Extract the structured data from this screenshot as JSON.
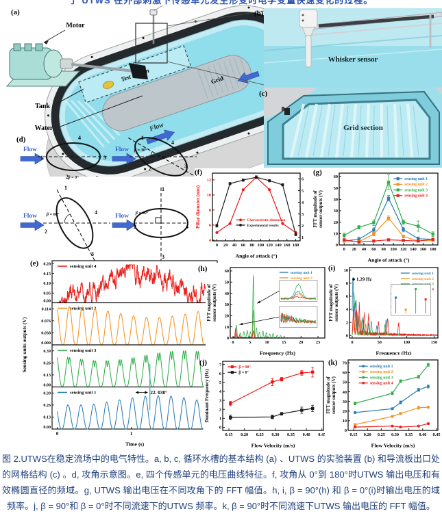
{
  "page": {
    "top_clipped_text": "了 UTWS 在外部刺激下传感单元发生形变时电学变量快速变化的过程。"
  },
  "colors": {
    "unit1": "#2a7db5",
    "unit2": "#f59122",
    "unit3": "#2fae49",
    "unit4": "#e8231f",
    "flow_arrow": "#4169cf",
    "caption": "#22407c",
    "water": "#90ddeb"
  },
  "panels": {
    "a": {
      "tag": "(a)",
      "labels": {
        "motor": "Motor",
        "tank": "Tank",
        "water": "Water",
        "test_section": "Test section",
        "flow": "Flow",
        "grid": "Grid"
      }
    },
    "b": {
      "tag": "(b)",
      "label": "Whisker sensor"
    },
    "c": {
      "tag": "(c)",
      "label": "Grid section"
    },
    "d": {
      "tag": "(d)",
      "flow": "Flow",
      "numbers": [
        "1",
        "2",
        "3",
        "4"
      ],
      "diagrams": [
        {
          "beta": "β = 0°"
        },
        {
          "beta": "β = 30°"
        },
        {
          "beta": "β = 60°"
        },
        {
          "beta": "β = 90°"
        }
      ]
    },
    "e": {
      "tag": "(e)"
    },
    "f": {
      "tag": "(f)"
    },
    "g": {
      "tag": "(g)"
    },
    "h": {
      "tag": "(h)"
    },
    "i": {
      "tag": "(i)"
    },
    "j": {
      "tag": "(j)"
    },
    "k": {
      "tag": "(k)"
    }
  },
  "chart_data": [
    {
      "id": "e",
      "type": "waveforms",
      "title": "",
      "xlabel": "Time (s)",
      "xticks": [
        0,
        1,
        2
      ],
      "xlim": [
        -0.07,
        2.16
      ],
      "ylabel": "Sensing units outputs (V)",
      "subplots": [
        {
          "name": "sensing unit 4",
          "color": "#e8231f",
          "kind": "noisy_hump",
          "ytick_labels": [
            "0.00",
            "0.05",
            "0.10",
            "0.15",
            "0.20"
          ],
          "ylim": [
            0,
            0.215
          ],
          "peak": 0.19
        },
        {
          "name": "sensing unit 2",
          "color": "#f59122",
          "kind": "osc",
          "ytick_labels": [
            "0.000",
            "0.038",
            "0.076",
            "0.114"
          ],
          "ylim": [
            0,
            0.133
          ],
          "amp": 0.124,
          "freq": 5.75,
          "phase": 2.0,
          "mod": 1
        },
        {
          "name": "sensing unit 3",
          "color": "#2fae49",
          "kind": "osc2",
          "ytick_labels": [
            "0.00",
            "0.13",
            "0.26",
            "0.39"
          ],
          "ylim": [
            0,
            0.455
          ],
          "amp": 0.44,
          "freq": 5.75,
          "phase": 2.3,
          "mod": 3
        },
        {
          "name": "sensing unit 1",
          "color": "#2a7db5",
          "kind": "osc",
          "ytick_labels": [
            "0.00",
            "0.13",
            "0.26",
            "0.39"
          ],
          "ylim": [
            0,
            0.455
          ],
          "amp": 0.37,
          "freq": 5.75,
          "phase": 2.6,
          "mod": 4,
          "annotation": {
            "text": "22. 038°",
            "t": 1.25
          }
        }
      ]
    },
    {
      "id": "f",
      "type": "line",
      "xlabel": "Angle of attack (°)",
      "xlim": [
        -10,
        190
      ],
      "xticks": [
        0,
        20,
        40,
        60,
        80,
        100,
        120,
        140,
        160,
        180
      ],
      "axes": {
        "left": {
          "label": "Pillar diameter (mm)",
          "lim": [
            3.9,
            12.9
          ],
          "ticks": [
            4,
            6,
            8,
            10,
            12
          ],
          "color": "#f21111"
        },
        "right": {
          "label": "Dominant frequency (Hz)",
          "lim": [
            0.7,
            6.5
          ],
          "ticks": [
            1,
            2,
            3,
            4,
            5,
            6
          ],
          "color": "#000000"
        }
      },
      "x": [
        0,
        30,
        60,
        90,
        120,
        150,
        180
      ],
      "series": [
        {
          "name": "Characteristic dimension",
          "axis": "left",
          "color": "#f21111",
          "marker": "circle",
          "values": [
            5.0,
            6.2,
            10.7,
            12.35,
            10.7,
            6.2,
            5.0
          ]
        },
        {
          "name": "Experimental results",
          "axis": "right",
          "color": "#1a1a1a",
          "marker": "circle",
          "values": [
            2.0,
            5.6,
            5.9,
            6.15,
            5.85,
            5.5,
            1.25
          ],
          "err": [
            0.12,
            0.1,
            0.1,
            0.12,
            0.1,
            0.1,
            0.1
          ]
        }
      ]
    },
    {
      "id": "g",
      "type": "line",
      "xlabel": "Angle of attack (°)",
      "xlim": [
        -10,
        190
      ],
      "xticks": [
        0,
        20,
        40,
        60,
        80,
        100,
        120,
        140,
        160,
        180
      ],
      "axes": {
        "left": {
          "label": [
            "FFT magnitude of",
            "sensor outputs (V)"
          ],
          "lim": [
            0,
            63
          ],
          "ticks": [
            0,
            10,
            20,
            30,
            40,
            50,
            60
          ],
          "color": "#000000"
        }
      },
      "x": [
        0,
        30,
        60,
        90,
        120,
        150,
        180
      ],
      "series": [
        {
          "name": "sensing unit 1",
          "color": "#2a7db5",
          "marker": "square",
          "values": [
            3.5,
            5,
            13,
            41,
            13.5,
            5.5,
            5
          ],
          "err": [
            1,
            2,
            2,
            2.5,
            2,
            1.5,
            1
          ]
        },
        {
          "name": "sensing unit 2",
          "color": "#f59122",
          "marker": "square",
          "values": [
            3.5,
            3,
            9.5,
            23.5,
            7.5,
            3.5,
            4
          ],
          "err": [
            0.8,
            0.8,
            1.5,
            2,
            1.2,
            0.8,
            0.8
          ]
        },
        {
          "name": "sensing unit 3",
          "color": "#2fae49",
          "marker": "square",
          "values": [
            8.5,
            15.5,
            19.5,
            55,
            20,
            16.5,
            9.5
          ],
          "err": [
            2,
            1.5,
            2.5,
            6.5,
            2,
            4.5,
            2
          ]
        },
        {
          "name": "sensing unit 4",
          "color": "#e8231f",
          "marker": "square",
          "values": [
            4.5,
            2.5,
            3.5,
            4.5,
            4,
            3.5,
            5
          ],
          "err": [
            0.5,
            0.5,
            0.5,
            0.5,
            0.5,
            0.5,
            0.5
          ]
        }
      ]
    },
    {
      "id": "h",
      "type": "spectrum",
      "xlabel": "Frequency (Hz)",
      "xlim": [
        -0.8,
        27
      ],
      "xticks": [
        0,
        5,
        10,
        15,
        20,
        25
      ],
      "axes": {
        "left": {
          "label": [
            "FFT magnitude of",
            "sensor outputs (V)"
          ],
          "lim": [
            0,
            63
          ],
          "ticks": [
            0,
            10,
            20,
            30,
            40,
            50,
            60
          ],
          "color": "#000000"
        }
      },
      "series": [
        {
          "name": "sensing unit 1",
          "color": "#2a7db5",
          "width": 0.16,
          "noise": 0.6,
          "decay": 8,
          "seed": 11,
          "peaks": [
            [
              6,
              23
            ],
            [
              1,
              3
            ]
          ]
        },
        {
          "name": "sensing unit 2",
          "color": "#f59122",
          "width": 0.16,
          "noise": 0.5,
          "decay": 8,
          "seed": 22,
          "peaks": [
            [
              6,
              25
            ],
            [
              0.9,
              4
            ]
          ]
        },
        {
          "name": "sensing unit 3",
          "color": "#2fae49",
          "width": 0.16,
          "noise": 1.2,
          "decay": 10,
          "seed": 33,
          "peaks": [
            [
              1,
              11
            ],
            [
              2.1,
              4
            ],
            [
              3.2,
              5
            ],
            [
              4.2,
              6.5
            ],
            [
              5.1,
              5
            ],
            [
              6,
              56
            ],
            [
              6.9,
              9
            ],
            [
              7.8,
              5
            ],
            [
              8.8,
              6
            ],
            [
              9.8,
              4.5
            ],
            [
              10.8,
              3.5
            ],
            [
              11.8,
              4
            ],
            [
              13,
              2.5
            ],
            [
              14,
              2
            ]
          ]
        },
        {
          "name": "sensing unit 4",
          "color": "#e8231f",
          "width": 0.16,
          "noise": 0.5,
          "decay": 9,
          "seed": 44,
          "peaks": [
            [
              0.8,
              8.5
            ],
            [
              2,
              2
            ],
            [
              6,
              6
            ]
          ]
        }
      ],
      "insets": [
        {
          "kind": "mini-peaks",
          "x": 0.52,
          "y": 0.18,
          "w": 0.4,
          "h": 0.3,
          "arrow_from": [
            6.5,
            31
          ]
        },
        {
          "kind": "mini-noise",
          "x": 0.52,
          "y": 0.55,
          "w": 0.4,
          "h": 0.3,
          "arrow_from": [
            1.3,
            12
          ]
        }
      ]
    },
    {
      "id": "i",
      "type": "spectrum",
      "xlabel": "Frequency (Hz)",
      "xlim": [
        -5,
        157
      ],
      "xticks": [
        0,
        50,
        100,
        150
      ],
      "axes": {
        "left": {
          "label": [
            "FFT magnitude of",
            "sensor outputs (V)"
          ],
          "lim": [
            -0.4,
            10.4
          ],
          "ticks": [
            0,
            2,
            4,
            6,
            8,
            10
          ],
          "color": "#000000"
        }
      },
      "series": [
        {
          "name": "sensing unit 1",
          "color": "#2a7db5",
          "width": 0.9,
          "noise": 0.9,
          "decay": 60,
          "seed": 5,
          "peaks": [
            [
              1.29,
              8.6
            ],
            [
              4,
              4
            ],
            [
              7,
              5.2
            ],
            [
              12,
              2.5
            ],
            [
              20,
              2
            ],
            [
              30,
              1.5
            ],
            [
              45,
              1.2
            ],
            [
              62,
              2.2
            ]
          ]
        },
        {
          "name": "sensing unit 2",
          "color": "#f59122",
          "width": 0.9,
          "noise": 0.8,
          "decay": 50,
          "seed": 6,
          "peaks": [
            [
              2,
              3
            ],
            [
              6,
              2.5
            ],
            [
              15,
              2
            ],
            [
              25,
              1.5
            ]
          ]
        },
        {
          "name": "sensing unit 3",
          "color": "#2fae49",
          "width": 0.9,
          "noise": 0.9,
          "decay": 55,
          "seed": 7,
          "peaks": [
            [
              3,
              6.3
            ],
            [
              5.5,
              4.5
            ],
            [
              9,
              3
            ],
            [
              18,
              2.3
            ],
            [
              35,
              1.8
            ],
            [
              60,
              1.4
            ]
          ]
        },
        {
          "name": "sensing unit 4",
          "color": "#e8231f",
          "width": 0.9,
          "noise": 1.0,
          "decay": 70,
          "seed": 8,
          "peaks": [
            [
              2.5,
              4.2
            ],
            [
              8,
              3.5
            ],
            [
              13,
              4.3
            ],
            [
              22,
              3
            ],
            [
              30,
              2.8
            ],
            [
              48,
              2
            ],
            [
              65,
              2.4
            ],
            [
              85,
              1.8
            ]
          ]
        }
      ],
      "annotations": [
        {
          "x": 2.5,
          "y": 8.6,
          "text": "1.29 Hz",
          "dot": true
        }
      ],
      "insets": [
        {
          "kind": "stems",
          "x": 0.47,
          "y": 0.24,
          "w": 0.45,
          "h": 0.44,
          "values": [
            0.62,
            0.15,
            0.95,
            0.55
          ]
        }
      ]
    },
    {
      "id": "j",
      "type": "line",
      "xlabel": "Flow Velocity (m/s)",
      "xlim": [
        0.13,
        0.455
      ],
      "xticks": [
        0.15,
        0.2,
        0.25,
        0.3,
        0.35,
        0.4,
        0.45
      ],
      "xtick_fmt": 2,
      "axes": {
        "left": {
          "label": "Dominant Frequency (Hz)",
          "lim": [
            -0.35,
            7.35
          ],
          "ticks": [
            0,
            1,
            2,
            3,
            4,
            5,
            6,
            7
          ],
          "color": "#000000"
        }
      },
      "x": [
        0.155,
        0.29,
        0.32,
        0.385,
        0.42
      ],
      "series": [
        {
          "name": "β = 90°",
          "color": "#f21111",
          "marker": "square",
          "values": [
            2.65,
            5.05,
            5.35,
            6.05,
            6.15
          ],
          "err": [
            0.25,
            0.4,
            0.2,
            0.25,
            0.55
          ]
        },
        {
          "name": "β = 0°",
          "color": "#1a1a1a",
          "marker": "square",
          "values": [
            1.1,
            1.15,
            1.5,
            1.9,
            2.1
          ],
          "err": [
            0.25,
            0.2,
            0.15,
            0.35,
            0.35
          ]
        }
      ]
    },
    {
      "id": "k",
      "type": "line",
      "xlabel": "Flow Velocity (m/s)",
      "xlim": [
        0.13,
        0.455
      ],
      "xticks": [
        0.15,
        0.2,
        0.25,
        0.3,
        0.35,
        0.4,
        0.45
      ],
      "xtick_fmt": 2,
      "axes": {
        "left": {
          "label": [
            "FFT magnitude of",
            "sensor outputs (V)"
          ],
          "lim": [
            0,
            73
          ],
          "ticks": [
            0,
            10,
            20,
            30,
            40,
            50,
            60,
            70
          ],
          "color": "#000000"
        }
      },
      "x": [
        0.155,
        0.29,
        0.32,
        0.385,
        0.42
      ],
      "series": [
        {
          "name": "sensing unit 1",
          "color": "#2a7db5",
          "marker": "circle",
          "values": [
            18.5,
            22.5,
            29,
            42,
            45.5
          ],
          "err": [
            1,
            1,
            1.5,
            1.5,
            1.5
          ]
        },
        {
          "name": "sensing unit 2",
          "color": "#f59122",
          "marker": "circle",
          "values": [
            6,
            14.5,
            17.5,
            23.5,
            24
          ],
          "err": [
            1,
            1,
            1,
            1.5,
            1
          ]
        },
        {
          "name": "sensing unit 3",
          "color": "#2fae49",
          "marker": "circle",
          "values": [
            28,
            38.5,
            51,
            55.5,
            68
          ],
          "err": [
            1.5,
            1.5,
            1.5,
            1.5,
            1.5
          ]
        },
        {
          "name": "sensing unit 4",
          "color": "#e8231f",
          "marker": "circle",
          "values": [
            3.5,
            4.5,
            3.5,
            4.5,
            7
          ],
          "err": [
            0.5,
            0.5,
            0.5,
            0.5,
            0.8
          ]
        }
      ]
    }
  ],
  "caption": "图 2.UTWS在稳定流场中的电气特性。a, b, c, 循环水槽的基本结构 (a) 、UTWS 的实验装置 (b) 和导流板出口处的网格结构 (c) 。d, 攻角示意图。e, 四个传感单元的电压曲线特征。f, 攻角从 0°到 180°时UTWS 输出电压和有效椭圆直径的频域。g, UTWS 输出电压在不同攻角下的 FFT 幅值。h, i, β = 90°(h) 和 β = 0°(i)时输出电压的域频率。j, β = 90°和 β = 0°时不同流速下的UTWS 频率。k, β = 90°时不同流速下UTWS 输出电压的 FFT 幅值。"
}
